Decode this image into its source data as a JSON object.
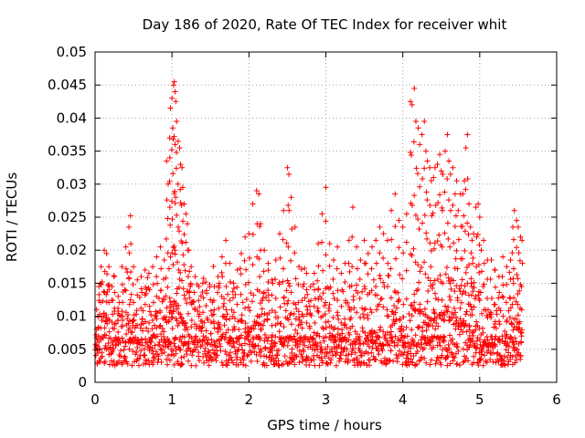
{
  "chart_data": {
    "type": "scatter",
    "title": "Day 186 of 2020, Rate Of TEC Index for receiver whit",
    "xlabel": "GPS time / hours",
    "ylabel": "ROTI / TECUs",
    "xlim": [
      0,
      6
    ],
    "ylim": [
      0,
      0.05
    ],
    "x_ticks": [
      "0",
      "1",
      "2",
      "3",
      "4",
      "5",
      "6"
    ],
    "y_ticks": [
      "0",
      "0.005",
      "0.01",
      "0.015",
      "0.02",
      "0.025",
      "0.03",
      "0.035",
      "0.04",
      "0.045",
      "0.05"
    ],
    "grid": true,
    "marker": "+",
    "series_color": "#ff0000",
    "data_range_x": [
      0,
      5.55
    ],
    "series": [
      {
        "name": "ROTI",
        "points": [
          [
            0.02,
            0.008
          ],
          [
            0.05,
            0.0145
          ],
          [
            0.08,
            0.0175
          ],
          [
            0.12,
            0.02
          ],
          [
            0.15,
            0.0195
          ],
          [
            0.18,
            0.0175
          ],
          [
            0.22,
            0.0145
          ],
          [
            0.25,
            0.016
          ],
          [
            0.3,
            0.013
          ],
          [
            0.35,
            0.0175
          ],
          [
            0.4,
            0.0205
          ],
          [
            0.44,
            0.0235
          ],
          [
            0.46,
            0.0252
          ],
          [
            0.5,
            0.0175
          ],
          [
            0.55,
            0.0155
          ],
          [
            0.6,
            0.016
          ],
          [
            0.65,
            0.017
          ],
          [
            0.7,
            0.0165
          ],
          [
            0.75,
            0.0175
          ],
          [
            0.8,
            0.019
          ],
          [
            0.85,
            0.0205
          ],
          [
            0.9,
            0.0185
          ],
          [
            0.93,
            0.0335
          ],
          [
            0.95,
            0.03
          ],
          [
            0.97,
            0.037
          ],
          [
            0.98,
            0.0415
          ],
          [
            1.0,
            0.043
          ],
          [
            1.01,
            0.0385
          ],
          [
            1.02,
            0.045
          ],
          [
            1.03,
            0.0455
          ],
          [
            1.04,
            0.044
          ],
          [
            1.05,
            0.0425
          ],
          [
            1.06,
            0.0395
          ],
          [
            1.08,
            0.0365
          ],
          [
            1.1,
            0.0355
          ],
          [
            1.11,
            0.033
          ],
          [
            1.13,
            0.0325
          ],
          [
            1.14,
            0.0295
          ],
          [
            1.16,
            0.027
          ],
          [
            1.18,
            0.0255
          ],
          [
            1.2,
            0.024
          ],
          [
            1.22,
            0.02
          ],
          [
            1.25,
            0.0175
          ],
          [
            1.3,
            0.016
          ],
          [
            1.35,
            0.0145
          ],
          [
            1.4,
            0.015
          ],
          [
            1.45,
            0.0135
          ],
          [
            1.5,
            0.0125
          ],
          [
            1.55,
            0.0145
          ],
          [
            1.6,
            0.016
          ],
          [
            1.65,
            0.019
          ],
          [
            1.7,
            0.0215
          ],
          [
            1.75,
            0.018
          ],
          [
            1.8,
            0.015
          ],
          [
            1.85,
            0.017
          ],
          [
            1.9,
            0.0195
          ],
          [
            1.95,
            0.022
          ],
          [
            2.0,
            0.0225
          ],
          [
            2.05,
            0.027
          ],
          [
            2.1,
            0.029
          ],
          [
            2.13,
            0.0285
          ],
          [
            2.15,
            0.024
          ],
          [
            2.2,
            0.02
          ],
          [
            2.25,
            0.018
          ],
          [
            2.3,
            0.0155
          ],
          [
            2.35,
            0.0185
          ],
          [
            2.4,
            0.0225
          ],
          [
            2.45,
            0.026
          ],
          [
            2.5,
            0.0325
          ],
          [
            2.52,
            0.0315
          ],
          [
            2.55,
            0.028
          ],
          [
            2.6,
            0.0235
          ],
          [
            2.65,
            0.0175
          ],
          [
            2.7,
            0.0145
          ],
          [
            2.75,
            0.0165
          ],
          [
            2.8,
            0.0145
          ],
          [
            2.85,
            0.0165
          ],
          [
            2.9,
            0.021
          ],
          [
            2.95,
            0.0255
          ],
          [
            3.0,
            0.0295
          ],
          [
            3.05,
            0.021
          ],
          [
            3.1,
            0.0185
          ],
          [
            3.15,
            0.0205
          ],
          [
            3.2,
            0.0165
          ],
          [
            3.25,
            0.018
          ],
          [
            3.3,
            0.0215
          ],
          [
            3.35,
            0.0265
          ],
          [
            3.4,
            0.0205
          ],
          [
            3.45,
            0.0185
          ],
          [
            3.5,
            0.0215
          ],
          [
            3.55,
            0.0195
          ],
          [
            3.6,
            0.0205
          ],
          [
            3.65,
            0.0215
          ],
          [
            3.7,
            0.0235
          ],
          [
            3.75,
            0.0225
          ],
          [
            3.8,
            0.0215
          ],
          [
            3.85,
            0.026
          ],
          [
            3.9,
            0.0285
          ],
          [
            3.95,
            0.0245
          ],
          [
            4.0,
            0.0235
          ],
          [
            4.05,
            0.0255
          ],
          [
            4.1,
            0.0425
          ],
          [
            4.12,
            0.042
          ],
          [
            4.15,
            0.0445
          ],
          [
            4.17,
            0.0395
          ],
          [
            4.2,
            0.0385
          ],
          [
            4.22,
            0.036
          ],
          [
            4.25,
            0.0375
          ],
          [
            4.28,
            0.0395
          ],
          [
            4.3,
            0.035
          ],
          [
            4.32,
            0.0335
          ],
          [
            4.35,
            0.0325
          ],
          [
            4.37,
            0.0305
          ],
          [
            4.4,
            0.031
          ],
          [
            4.42,
            0.0325
          ],
          [
            4.45,
            0.033
          ],
          [
            4.48,
            0.0345
          ],
          [
            4.5,
            0.032
          ],
          [
            4.52,
            0.0315
          ],
          [
            4.55,
            0.035
          ],
          [
            4.58,
            0.0375
          ],
          [
            4.6,
            0.0335
          ],
          [
            4.62,
            0.0315
          ],
          [
            4.65,
            0.0325
          ],
          [
            4.68,
            0.0285
          ],
          [
            4.7,
            0.0305
          ],
          [
            4.72,
            0.026
          ],
          [
            4.75,
            0.0285
          ],
          [
            4.78,
            0.0285
          ],
          [
            4.8,
            0.0305
          ],
          [
            4.82,
            0.0355
          ],
          [
            4.84,
            0.0375
          ],
          [
            4.86,
            0.027
          ],
          [
            4.88,
            0.0235
          ],
          [
            4.9,
            0.0215
          ],
          [
            4.92,
            0.0225
          ],
          [
            4.95,
            0.0265
          ],
          [
            4.98,
            0.027
          ],
          [
            5.0,
            0.025
          ],
          [
            5.02,
            0.02
          ],
          [
            5.05,
            0.0215
          ],
          [
            5.1,
            0.0185
          ],
          [
            5.15,
            0.0185
          ],
          [
            5.2,
            0.017
          ],
          [
            5.25,
            0.016
          ],
          [
            5.3,
            0.019
          ],
          [
            5.35,
            0.0175
          ],
          [
            5.4,
            0.0185
          ],
          [
            5.43,
            0.0235
          ],
          [
            5.45,
            0.026
          ],
          [
            5.48,
            0.0245
          ],
          [
            5.5,
            0.0235
          ],
          [
            5.53,
            0.022
          ],
          [
            5.55,
            0.0215
          ]
        ]
      }
    ]
  }
}
